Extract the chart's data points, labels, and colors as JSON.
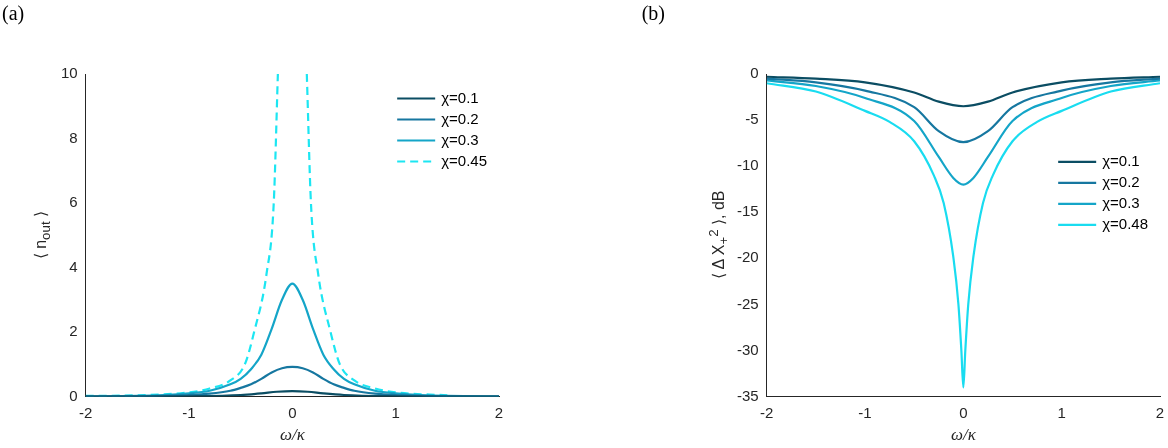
{
  "chart_data": [
    {
      "type": "line",
      "title": "(a)",
      "xlabel": "ω/κ",
      "ylabel": "⟨ n$_{out}$ ⟩",
      "xlim": [
        -2,
        2
      ],
      "xticks": [
        -2,
        -1,
        0,
        1,
        2
      ],
      "ylim": [
        0,
        10
      ],
      "yticks": [
        0,
        2,
        4,
        6,
        8,
        10
      ],
      "grid": false,
      "legend": "top right",
      "marker": "none",
      "series": [
        {
          "name": "χ=0.1",
          "color": "#0b4d63",
          "x": [
            -2,
            -1.5,
            -1,
            -0.5,
            -0.3,
            -0.15,
            0,
            0.15,
            0.3,
            0.5,
            1,
            1.5,
            2
          ],
          "values": [
            0,
            0,
            0.01,
            0.05,
            0.1,
            0.15,
            0.17,
            0.15,
            0.1,
            0.05,
            0.01,
            0,
            0
          ]
        },
        {
          "name": "χ=0.2",
          "color": "#1677a0",
          "x": [
            -2,
            -1.5,
            -1,
            -0.8,
            -0.6,
            -0.5,
            -0.4,
            -0.3,
            -0.2,
            -0.1,
            0,
            0.1,
            0.2,
            0.3,
            0.4,
            0.5,
            0.6,
            0.8,
            1,
            1.5,
            2
          ],
          "values": [
            0,
            0.01,
            0.05,
            0.09,
            0.18,
            0.27,
            0.38,
            0.55,
            0.75,
            0.88,
            0.92,
            0.88,
            0.75,
            0.55,
            0.38,
            0.27,
            0.18,
            0.09,
            0.05,
            0.01,
            0
          ]
        },
        {
          "name": "χ=0.3",
          "color": "#14a5c8",
          "x": [
            -2,
            -1.5,
            -1,
            -0.8,
            -0.6,
            -0.5,
            -0.4,
            -0.3,
            -0.2,
            -0.1,
            0,
            0.1,
            0.2,
            0.3,
            0.4,
            0.5,
            0.6,
            0.8,
            1,
            1.5,
            2
          ],
          "values": [
            0.01,
            0.02,
            0.1,
            0.18,
            0.38,
            0.55,
            0.85,
            1.3,
            2.1,
            3,
            3.5,
            3,
            2.1,
            1.3,
            0.85,
            0.55,
            0.38,
            0.18,
            0.1,
            0.02,
            0.01
          ]
        },
        {
          "name": "χ=0.45",
          "color": "#1ce6f2",
          "line_style": "dashed",
          "x": [
            -2,
            -1.5,
            -1,
            -0.8,
            -0.6,
            -0.46,
            -0.37,
            -0.25,
            -0.18,
            -0.14,
            0,
            0.14,
            0.18,
            0.25,
            0.37,
            0.46,
            0.6,
            0.8,
            1,
            1.5
          ],
          "values": [
            0.02,
            0.04,
            0.13,
            0.25,
            0.5,
            1,
            2,
            3.8,
            6,
            10,
            null,
            10,
            6,
            3.8,
            2,
            1,
            0.5,
            0.25,
            0.13,
            0.04
          ]
        }
      ]
    },
    {
      "type": "line",
      "title": "(b)",
      "xlabel": "ω/κ",
      "ylabel": "⟨ Δ X$_{+}$$^{2}$ ⟩, dB",
      "xlim": [
        -2,
        2
      ],
      "xticks": [
        -2,
        -1,
        0,
        1,
        2
      ],
      "ylim": [
        -35,
        0
      ],
      "yticks": [
        -35,
        -30,
        -25,
        -20,
        -15,
        -10,
        -5,
        0
      ],
      "grid": false,
      "legend": "right",
      "marker": "none",
      "series": [
        {
          "name": "χ=0.1",
          "color": "#0b4d63",
          "x": [
            -2,
            -1.5,
            -1,
            -0.5,
            -0.25,
            0,
            0.25,
            0.5,
            1,
            1.5,
            2
          ],
          "values": [
            -0.3,
            -0.5,
            -0.9,
            -2,
            -3,
            -3.5,
            -3,
            -2,
            -0.9,
            -0.5,
            -0.3
          ]
        },
        {
          "name": "χ=0.2",
          "color": "#1677a0",
          "x": [
            -2,
            -1.5,
            -1,
            -0.5,
            -0.25,
            0,
            0.25,
            0.5,
            1,
            1.5,
            2
          ],
          "values": [
            -0.5,
            -0.9,
            -1.8,
            -3.6,
            -6.2,
            -7.4,
            -6.2,
            -3.6,
            -1.8,
            -0.9,
            -0.5
          ]
        },
        {
          "name": "χ=0.3",
          "color": "#14a5c8",
          "x": [
            -2,
            -1.5,
            -1,
            -0.5,
            -0.25,
            -0.1,
            0,
            0.1,
            0.25,
            0.5,
            1,
            1.5,
            2
          ],
          "values": [
            -0.7,
            -1.3,
            -2.6,
            -5.1,
            -9,
            -11.3,
            -12,
            -11.3,
            -9,
            -5.1,
            -2.6,
            -1.3,
            -0.7
          ]
        },
        {
          "name": "χ=0.48",
          "color": "#19dcf0",
          "x": [
            -2,
            -1.5,
            -1,
            -0.75,
            -0.5,
            -0.3,
            -0.2,
            -0.1,
            -0.05,
            -0.02,
            0,
            0.02,
            0.05,
            0.1,
            0.2,
            0.3,
            0.5,
            0.75,
            1,
            1.5,
            2
          ],
          "values": [
            -1,
            -1.9,
            -4,
            -5.2,
            -7.3,
            -11,
            -14,
            -20,
            -25,
            -30,
            -34,
            -30,
            -25,
            -20,
            -14,
            -11,
            -7.3,
            -5.2,
            -4,
            -1.9,
            -1
          ]
        }
      ]
    }
  ]
}
